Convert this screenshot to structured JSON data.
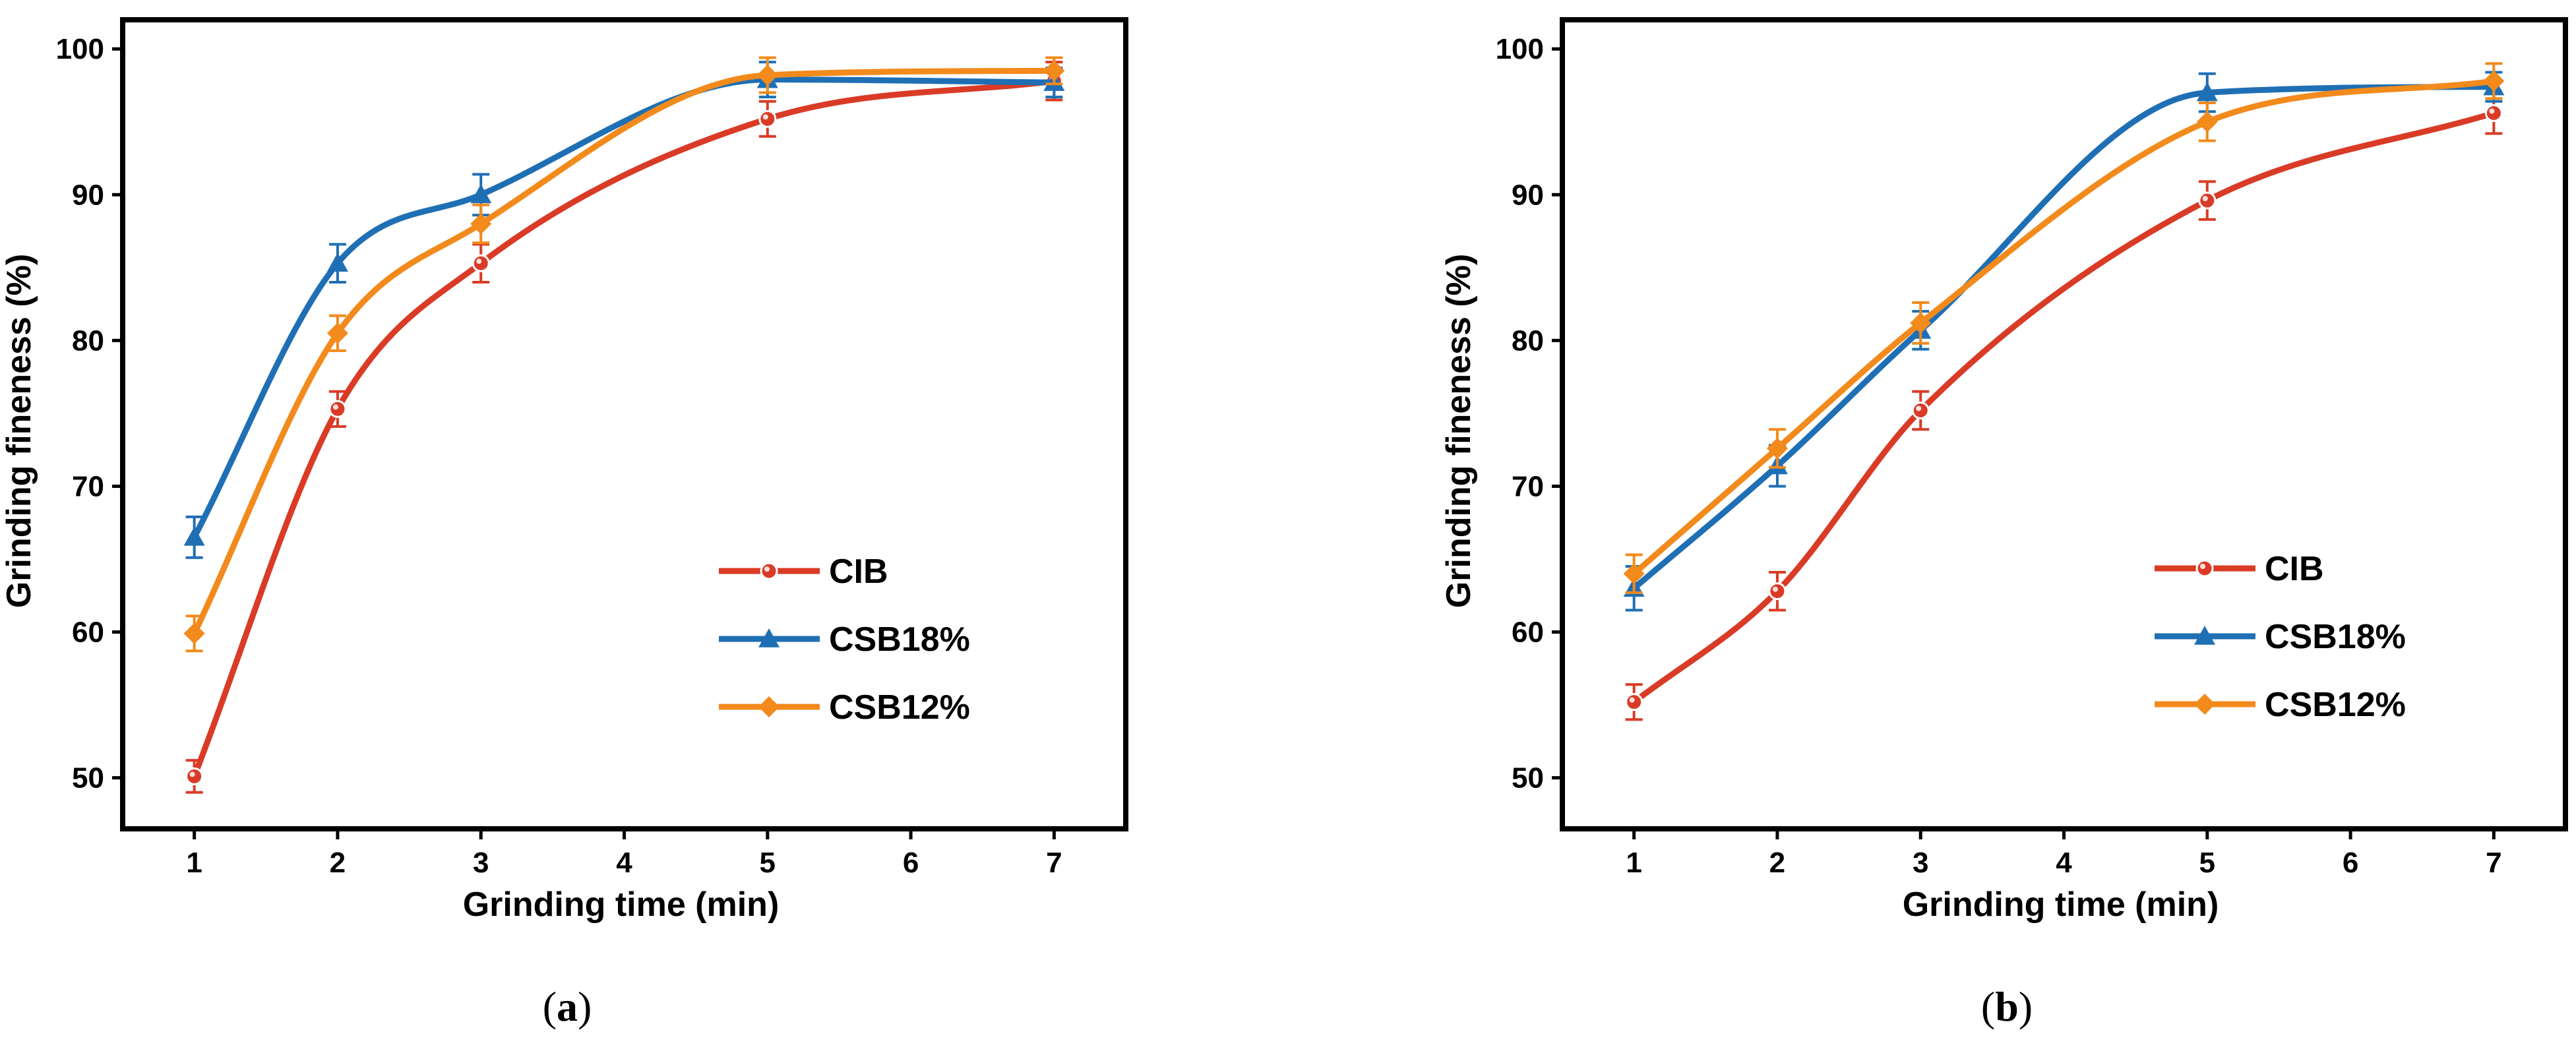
{
  "colors": {
    "CIB": "#d93b26",
    "CSB18%": "#1f6fb4",
    "CSB12%": "#f28a1c"
  },
  "chart_data": [
    {
      "type": "line",
      "panel_label": "a",
      "xlabel": "Grinding time (min)",
      "ylabel": "Grinding fineness (%)",
      "xlim": [
        0.5,
        7.5
      ],
      "ylim": [
        46.5,
        102
      ],
      "xticks": [
        1,
        2,
        3,
        4,
        5,
        6,
        7
      ],
      "yticks": [
        50,
        60,
        70,
        80,
        90,
        100
      ],
      "legend_position": "lower-right",
      "series": [
        {
          "name": "CIB",
          "marker": "circle",
          "x": [
            1,
            2,
            3,
            5,
            7
          ],
          "y": [
            50.1,
            75.3,
            85.3,
            95.2,
            97.8
          ],
          "err": [
            1.1,
            1.2,
            1.3,
            1.2,
            1.3
          ]
        },
        {
          "name": "CSB18%",
          "marker": "triangle",
          "x": [
            1,
            2,
            3,
            5,
            7
          ],
          "y": [
            66.5,
            85.3,
            90.0,
            97.9,
            97.7
          ],
          "err": [
            1.4,
            1.3,
            1.4,
            1.2,
            1.0
          ]
        },
        {
          "name": "CSB12%",
          "marker": "diamond",
          "x": [
            1,
            2,
            3,
            5,
            7
          ],
          "y": [
            59.9,
            80.5,
            88.0,
            98.2,
            98.5
          ],
          "err": [
            1.2,
            1.2,
            1.3,
            1.2,
            0.9
          ]
        }
      ]
    },
    {
      "type": "line",
      "panel_label": "b",
      "xlabel": "Grinding time (min)",
      "ylabel": "Grinding fineness (%)",
      "xlim": [
        0.5,
        7.5
      ],
      "ylim": [
        46.5,
        102
      ],
      "xticks": [
        1,
        2,
        3,
        4,
        5,
        6,
        7
      ],
      "yticks": [
        50,
        60,
        70,
        80,
        90,
        100
      ],
      "legend_position": "lower-right",
      "series": [
        {
          "name": "CIB",
          "marker": "circle",
          "x": [
            1,
            2,
            3,
            5,
            7
          ],
          "y": [
            55.2,
            62.8,
            75.2,
            89.6,
            95.6
          ],
          "err": [
            1.2,
            1.3,
            1.3,
            1.3,
            1.4
          ]
        },
        {
          "name": "CSB18%",
          "marker": "triangle",
          "x": [
            1,
            2,
            3,
            5,
            7
          ],
          "y": [
            63.0,
            71.4,
            80.7,
            97.0,
            97.4
          ],
          "err": [
            1.5,
            1.4,
            1.3,
            1.3,
            1.0
          ]
        },
        {
          "name": "CSB12%",
          "marker": "diamond",
          "x": [
            1,
            2,
            3,
            5,
            7
          ],
          "y": [
            64.0,
            72.6,
            81.2,
            95.0,
            97.8
          ],
          "err": [
            1.3,
            1.3,
            1.4,
            1.3,
            1.2
          ]
        }
      ]
    }
  ]
}
